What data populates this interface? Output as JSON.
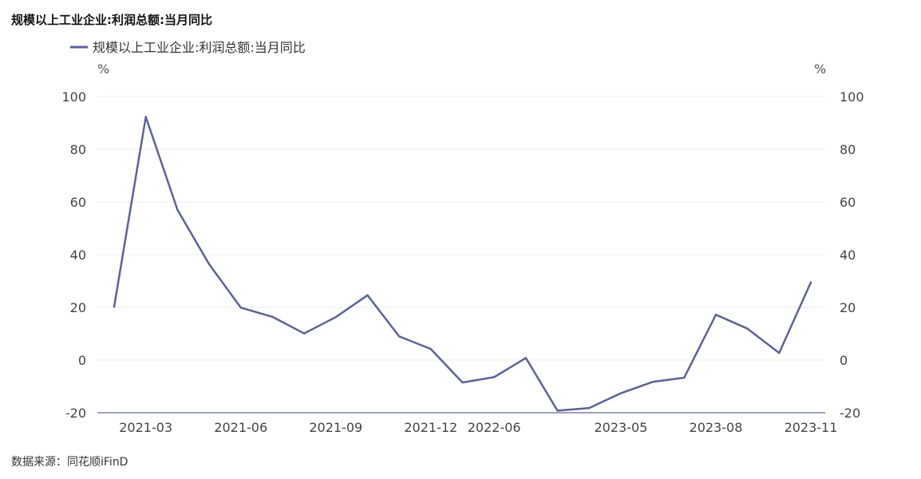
{
  "title": "规模以上工业企业:利润总额:当月同比",
  "source": "数据来源：同花顺iFinD",
  "chart_data": {
    "type": "line",
    "title": "规模以上工业企业:利润总额:当月同比",
    "left_unit": "%",
    "right_unit": "%",
    "ylim": [
      -20,
      100
    ],
    "yticks": [
      100,
      80,
      60,
      40,
      20,
      0,
      -20
    ],
    "xtick_labels": [
      "2021-03",
      "2021-06",
      "2021-09",
      "2021-12",
      "2022-06",
      "2023-05",
      "2023-08",
      "2023-11"
    ],
    "x": [
      "2021-02",
      "2021-03",
      "2021-04",
      "2021-05",
      "2021-06",
      "2021-07",
      "2021-08",
      "2021-09",
      "2021-10",
      "2021-11",
      "2021-12",
      "2022-05",
      "2022-06",
      "2022-07",
      "2023-03",
      "2023-04",
      "2023-05",
      "2023-06",
      "2023-07",
      "2023-08",
      "2023-09",
      "2023-10",
      "2023-11"
    ],
    "series": [
      {
        "name": "规模以上工业企业:利润总额:当月同比",
        "color": "#5b6398",
        "values": [
          20.2,
          92.3,
          57.0,
          36.4,
          19.9,
          16.4,
          10.1,
          16.3,
          24.6,
          9.0,
          4.2,
          -8.5,
          -6.5,
          0.8,
          -19.2,
          -18.2,
          -12.6,
          -8.3,
          -6.7,
          17.2,
          11.9,
          2.7,
          29.5
        ]
      }
    ],
    "grid": true,
    "legend_position": "top-left"
  }
}
